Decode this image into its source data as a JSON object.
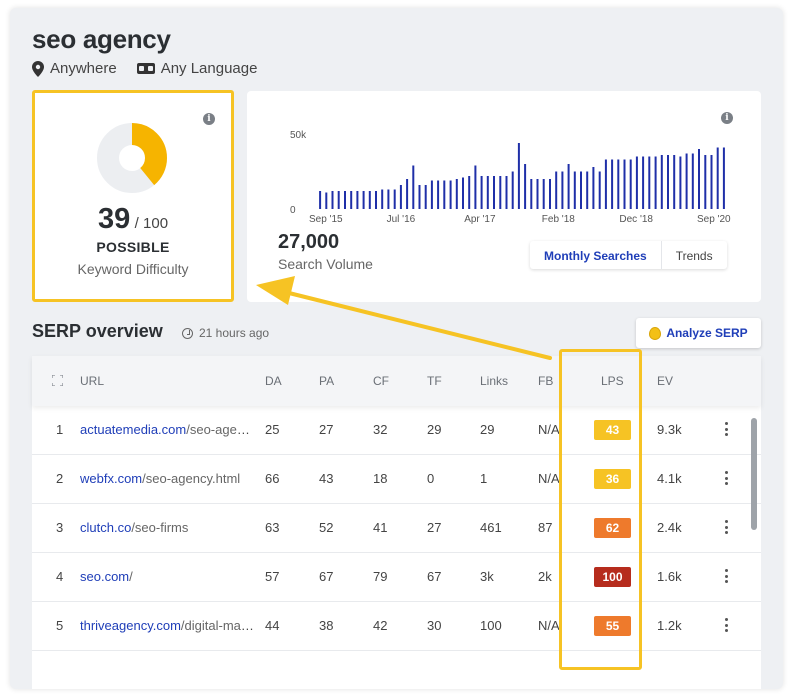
{
  "keyword": "seo agency",
  "location": "Anywhere",
  "language": "Any Language",
  "difficulty": {
    "score": "39",
    "max": "/ 100",
    "rating": "POSSIBLE",
    "label": "Keyword Difficulty",
    "fraction": 0.39,
    "color": "#f6b400"
  },
  "search_volume": {
    "value": "27,000",
    "label": "Search Volume",
    "tabs": [
      "Monthly Searches",
      "Trends"
    ]
  },
  "chart_data": {
    "type": "bar",
    "color": "#1f2fa8",
    "yticks": [
      "50k",
      "0"
    ],
    "ylim": [
      0,
      50000
    ],
    "xticks": [
      "Sep '15",
      "Jul '16",
      "Apr '17",
      "Feb '18",
      "Dec '18",
      "Sep '20"
    ],
    "values": [
      12000,
      11000,
      12000,
      12000,
      12000,
      12000,
      12000,
      12000,
      12000,
      12000,
      13000,
      13000,
      13000,
      16000,
      20000,
      29000,
      16000,
      16000,
      19000,
      19000,
      19000,
      19000,
      20000,
      21000,
      22000,
      29000,
      22000,
      22000,
      22000,
      22000,
      22000,
      25000,
      44000,
      30000,
      20000,
      20000,
      20000,
      20000,
      25000,
      25000,
      30000,
      25000,
      25000,
      25000,
      28000,
      25000,
      33000,
      33000,
      33000,
      33000,
      33000,
      35000,
      35000,
      35000,
      35000,
      36000,
      36000,
      36000,
      35000,
      37000,
      37000,
      40000,
      36000,
      36000,
      41000,
      41000
    ]
  },
  "serp": {
    "title": "SERP overview",
    "updated": "21 hours ago",
    "analyze_label": "Analyze SERP",
    "columns": [
      "URL",
      "DA",
      "PA",
      "CF",
      "TF",
      "Links",
      "FB",
      "LPS",
      "EV"
    ],
    "rows": [
      {
        "idx": "1",
        "domain": "actuatemedia.com",
        "path": "/seo-agency",
        "da": "25",
        "pa": "27",
        "cf": "32",
        "tf": "29",
        "links": "29",
        "fb": "N/A",
        "lps": "43",
        "lps_color": "#f6c324",
        "ev": "9.3k"
      },
      {
        "idx": "2",
        "domain": "webfx.com",
        "path": "/seo-agency.html",
        "da": "66",
        "pa": "43",
        "cf": "18",
        "tf": "0",
        "links": "1",
        "fb": "N/A",
        "lps": "36",
        "lps_color": "#f6c324",
        "ev": "4.1k"
      },
      {
        "idx": "3",
        "domain": "clutch.co",
        "path": "/seo-firms",
        "da": "63",
        "pa": "52",
        "cf": "41",
        "tf": "27",
        "links": "461",
        "fb": "87",
        "lps": "62",
        "lps_color": "#ee7a2c",
        "ev": "2.4k"
      },
      {
        "idx": "4",
        "domain": "seo.com",
        "path": "/",
        "da": "57",
        "pa": "67",
        "cf": "79",
        "tf": "67",
        "links": "3k",
        "fb": "2k",
        "lps": "100",
        "lps_color": "#b62c1d",
        "ev": "1.6k"
      },
      {
        "idx": "5",
        "domain": "thriveagency.com",
        "path": "/digital-marketing",
        "da": "44",
        "pa": "38",
        "cf": "42",
        "tf": "30",
        "links": "100",
        "fb": "N/A",
        "lps": "55",
        "lps_color": "#ee7a2c",
        "ev": "1.2k"
      }
    ]
  }
}
